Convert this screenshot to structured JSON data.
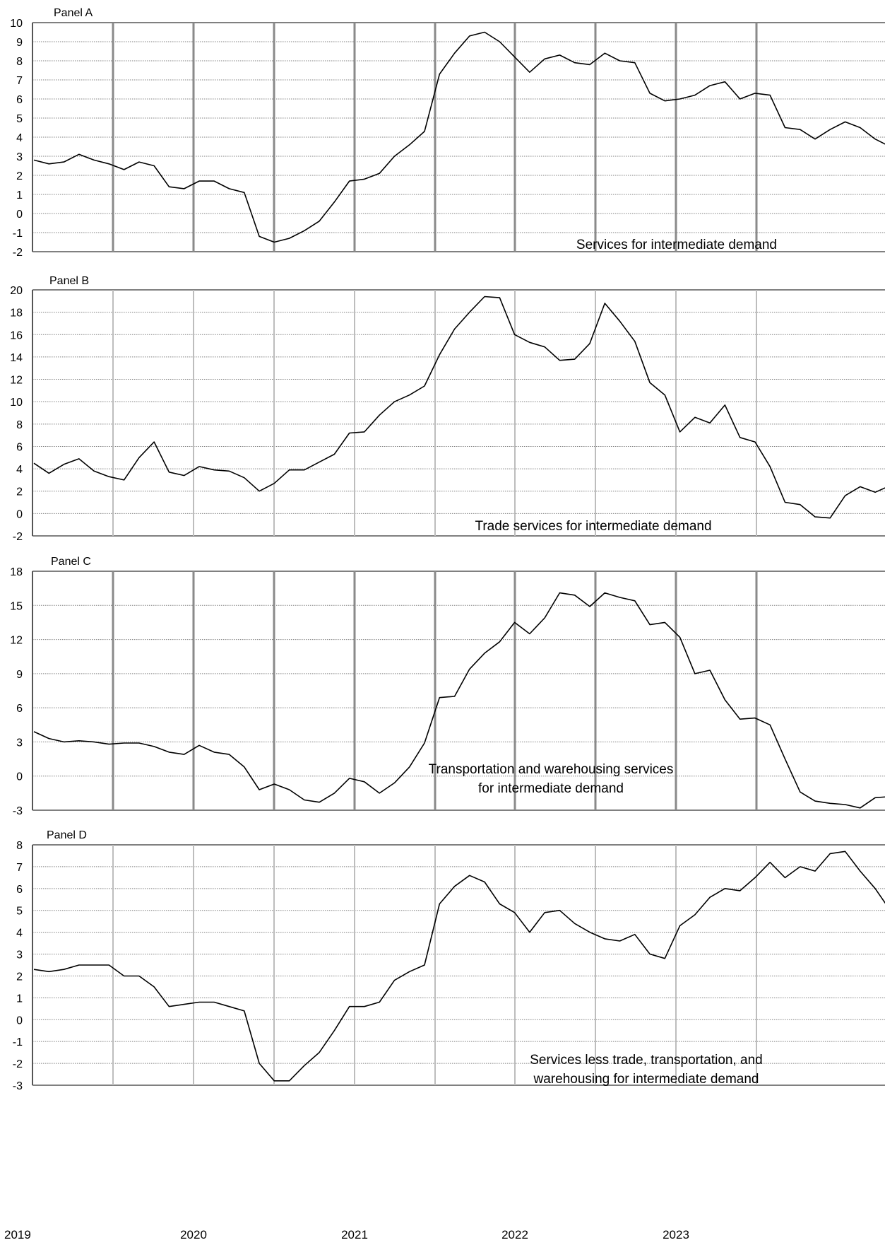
{
  "chart_data": [
    {
      "panel_label": "Panel A",
      "type": "line",
      "series_label": "Services for intermediate demand",
      "yticks": [
        "10",
        "9",
        "8",
        "7",
        "6",
        "5",
        "4",
        "3",
        "2",
        "1",
        "0",
        "-1",
        "-2"
      ],
      "ylim": [
        -2,
        10
      ],
      "x_start": "2019-01",
      "values": [
        2.8,
        2.6,
        2.7,
        3.1,
        2.8,
        2.6,
        2.3,
        2.7,
        2.5,
        1.4,
        1.3,
        1.7,
        1.7,
        1.3,
        1.1,
        -1.2,
        -1.5,
        -1.3,
        -0.9,
        -0.4,
        0.6,
        1.7,
        1.8,
        2.1,
        3.0,
        3.6,
        4.3,
        7.3,
        8.4,
        9.3,
        9.5,
        9.0,
        8.2,
        7.4,
        8.1,
        8.3,
        7.9,
        7.8,
        8.4,
        8.0,
        7.9,
        6.3,
        5.9,
        6.0,
        6.2,
        6.7,
        6.9,
        6.0,
        6.3,
        6.2,
        4.5,
        4.4,
        3.9,
        4.4,
        4.8,
        4.5,
        3.9,
        3.5
      ]
    },
    {
      "panel_label": "Panel B",
      "type": "line",
      "series_label": "Trade services for intermediate demand",
      "yticks": [
        "20",
        "18",
        "16",
        "14",
        "12",
        "10",
        "8",
        "6",
        "4",
        "2",
        "0",
        "-2"
      ],
      "ylim": [
        -2,
        20
      ],
      "x_start": "2019-01",
      "values": [
        4.5,
        3.6,
        4.4,
        4.9,
        3.8,
        3.3,
        3.0,
        5.0,
        6.4,
        3.7,
        3.4,
        4.2,
        3.9,
        3.8,
        3.2,
        2.0,
        2.7,
        3.9,
        3.9,
        4.6,
        5.3,
        7.2,
        7.3,
        8.8,
        10.0,
        10.6,
        11.4,
        14.2,
        16.5,
        18.0,
        19.4,
        19.3,
        16.0,
        15.3,
        14.9,
        13.7,
        13.8,
        15.2,
        18.8,
        17.2,
        15.4,
        11.7,
        10.6,
        7.3,
        8.6,
        8.1,
        9.7,
        6.8,
        6.4,
        4.2,
        1.0,
        0.8,
        -0.3,
        -0.4,
        1.6,
        2.4,
        1.9,
        2.5
      ]
    },
    {
      "panel_label": "Panel C",
      "type": "line",
      "series_label": "Transportation and warehousing services for intermediate demand",
      "series_label_lines": [
        "Transportation and warehousing services",
        "for intermediate demand"
      ],
      "yticks": [
        "18",
        "15",
        "12",
        "9",
        "6",
        "3",
        "0",
        "-3"
      ],
      "ylim": [
        -3,
        18
      ],
      "x_start": "2019-01",
      "values": [
        3.9,
        3.3,
        3.0,
        3.1,
        3.0,
        2.8,
        2.9,
        2.9,
        2.6,
        2.1,
        1.9,
        2.7,
        2.1,
        1.9,
        0.8,
        -1.2,
        -0.7,
        -1.2,
        -2.1,
        -2.3,
        -1.5,
        -0.2,
        -0.5,
        -1.5,
        -0.6,
        0.8,
        2.9,
        6.9,
        7.0,
        9.4,
        10.8,
        11.8,
        13.5,
        12.5,
        13.9,
        16.1,
        15.9,
        14.9,
        16.1,
        15.7,
        15.4,
        13.3,
        13.5,
        12.2,
        9.0,
        9.3,
        6.7,
        5.0,
        5.1,
        4.5,
        1.5,
        -1.4,
        -2.2,
        -2.4,
        -2.5,
        -2.8,
        -1.9,
        -1.8
      ]
    },
    {
      "panel_label": "Panel D",
      "type": "line",
      "series_label": "Services less trade, transportation, and warehousing for intermediate demand",
      "series_label_lines": [
        "Services less trade, transportation, and",
        "warehousing for intermediate demand"
      ],
      "yticks": [
        "8",
        "7",
        "6",
        "5",
        "4",
        "3",
        "2",
        "1",
        "0",
        "-1",
        "-2",
        "-3"
      ],
      "ylim": [
        -3,
        8
      ],
      "x_start": "2019-01",
      "values": [
        2.3,
        2.2,
        2.3,
        2.5,
        2.5,
        2.5,
        2.0,
        2.0,
        1.5,
        0.6,
        0.7,
        0.8,
        0.8,
        0.6,
        0.4,
        -2.0,
        -2.8,
        -2.8,
        -2.1,
        -1.5,
        -0.5,
        0.6,
        0.6,
        0.8,
        1.8,
        2.2,
        2.5,
        5.3,
        6.1,
        6.6,
        6.3,
        5.3,
        4.9,
        4.0,
        4.9,
        5.0,
        4.4,
        4.0,
        3.7,
        3.6,
        3.9,
        3.0,
        2.8,
        4.3,
        4.8,
        5.6,
        6.0,
        5.9,
        6.5,
        7.2,
        6.5,
        7.0,
        6.8,
        7.6,
        7.7,
        6.8,
        6.0,
        5.0
      ]
    }
  ],
  "x_tick_labels": [
    "2019",
    "2020",
    "2021",
    "2022",
    "2023"
  ],
  "style": {
    "line_color": "#000000",
    "grid_color": "#808080",
    "vline_color": "#8a8a8a",
    "vline_light_color": "#bdbdbd"
  }
}
